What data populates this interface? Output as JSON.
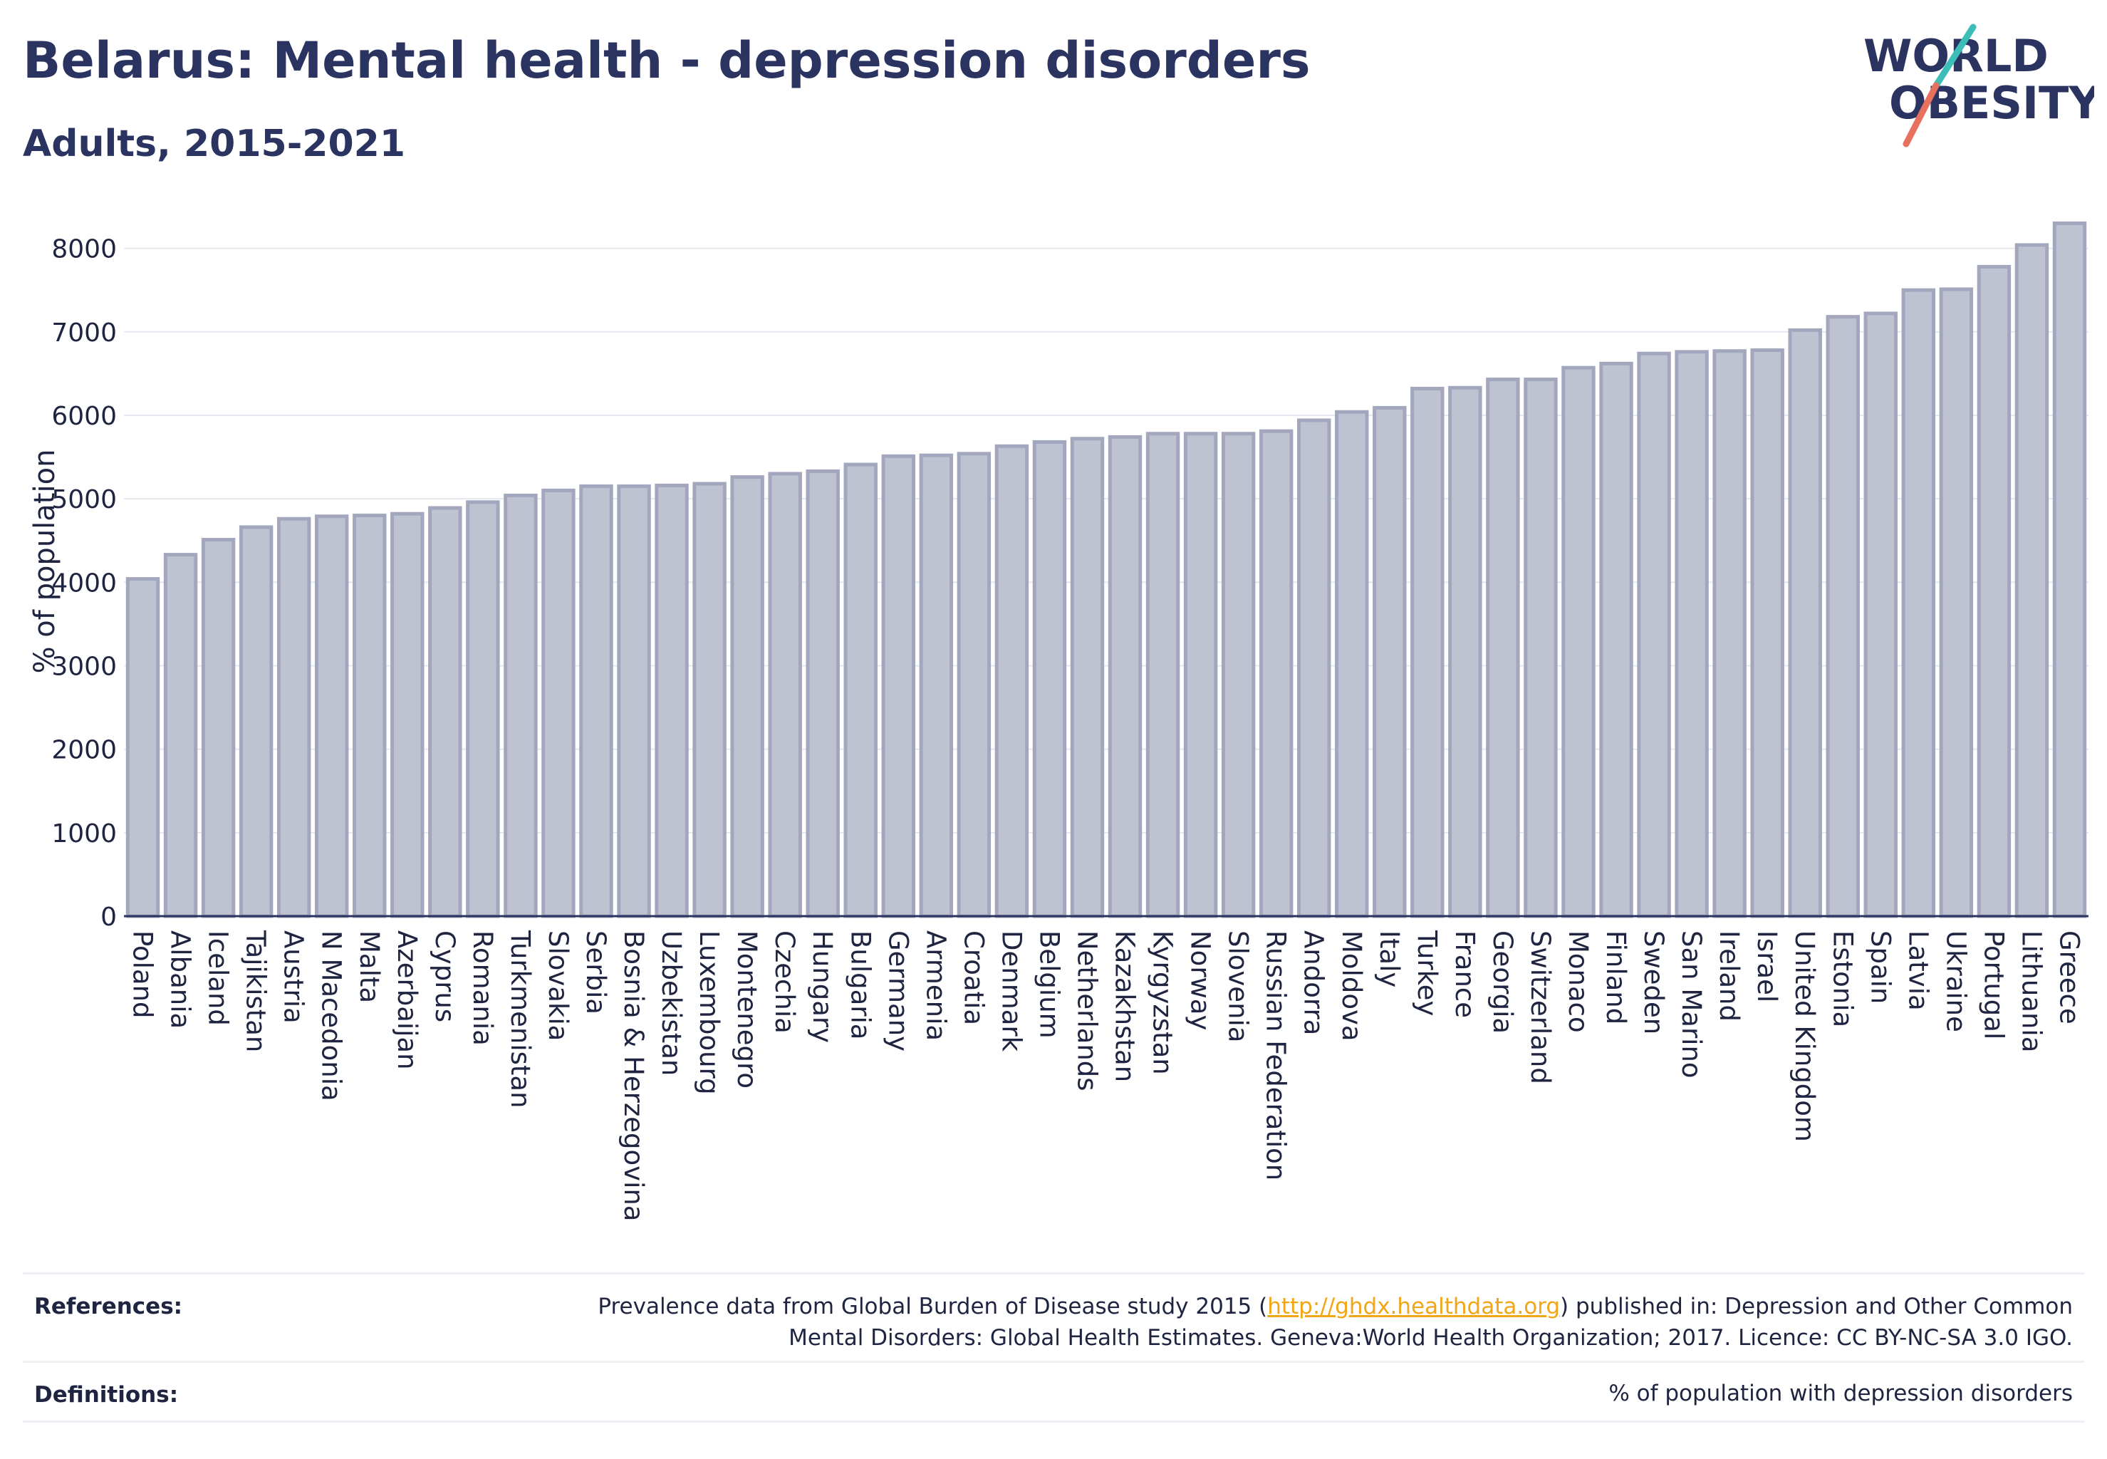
{
  "header": {
    "title": "Belarus: Mental health - depression disorders",
    "subtitle": "Adults, 2015-2021",
    "logo_line1": "WORLD",
    "logo_line2": "OBESITY"
  },
  "colors": {
    "title": "#2b3461",
    "bar_fill": "#bfc3d1",
    "bar_stroke": "#a2a7bd",
    "grid": "#e6e8ef",
    "link": "#f2a516",
    "logo_teal": "#3dbdb8",
    "logo_coral": "#e8705f"
  },
  "chart_data": {
    "type": "bar",
    "title": "",
    "xlabel": "",
    "ylabel": "% of population",
    "ylim": [
      0,
      8500
    ],
    "yticks": [
      0,
      1000,
      2000,
      3000,
      4000,
      5000,
      6000,
      7000,
      8000
    ],
    "grid": true,
    "categories": [
      "Poland",
      "Albania",
      "Iceland",
      "Tajikistan",
      "Austria",
      "N Macedonia",
      "Malta",
      "Azerbaijan",
      "Cyprus",
      "Romania",
      "Turkmenistan",
      "Slovakia",
      "Serbia",
      "Bosnia & Herzegovina",
      "Uzbekistan",
      "Luxembourg",
      "Montenegro",
      "Czechia",
      "Hungary",
      "Bulgaria",
      "Germany",
      "Armenia",
      "Croatia",
      "Denmark",
      "Belgium",
      "Netherlands",
      "Kazakhstan",
      "Kyrgyzstan",
      "Norway",
      "Slovenia",
      "Russian Federation",
      "Andorra",
      "Moldova",
      "Italy",
      "Turkey",
      "France",
      "Georgia",
      "Switzerland",
      "Monaco",
      "Finland",
      "Sweden",
      "San Marino",
      "Ireland",
      "Israel",
      "United Kingdom",
      "Estonia",
      "Spain",
      "Latvia",
      "Ukraine",
      "Portugal",
      "Lithuania",
      "Greece"
    ],
    "values": [
      4040,
      4330,
      4510,
      4660,
      4760,
      4790,
      4800,
      4820,
      4890,
      4960,
      5040,
      5100,
      5150,
      5150,
      5160,
      5180,
      5260,
      5300,
      5330,
      5410,
      5510,
      5520,
      5540,
      5630,
      5680,
      5720,
      5740,
      5780,
      5780,
      5780,
      5810,
      5940,
      6040,
      6090,
      6320,
      6330,
      6430,
      6430,
      6570,
      6620,
      6740,
      6760,
      6770,
      6780,
      7020,
      7180,
      7220,
      7500,
      7510,
      7780,
      8040,
      8300
    ]
  },
  "footer": {
    "references_label": "References:",
    "references_pre": "Prevalence data from Global Burden of Disease study 2015 (",
    "references_link": "http://ghdx.healthdata.org",
    "references_post1": ") published in: Depression and Other Common",
    "references_line2": "Mental Disorders: Global Health Estimates. Geneva:World Health Organization; 2017. Licence: CC BY-NC-SA 3.0 IGO.",
    "definitions_label": "Definitions:",
    "definitions_text": "% of population with depression disorders"
  }
}
